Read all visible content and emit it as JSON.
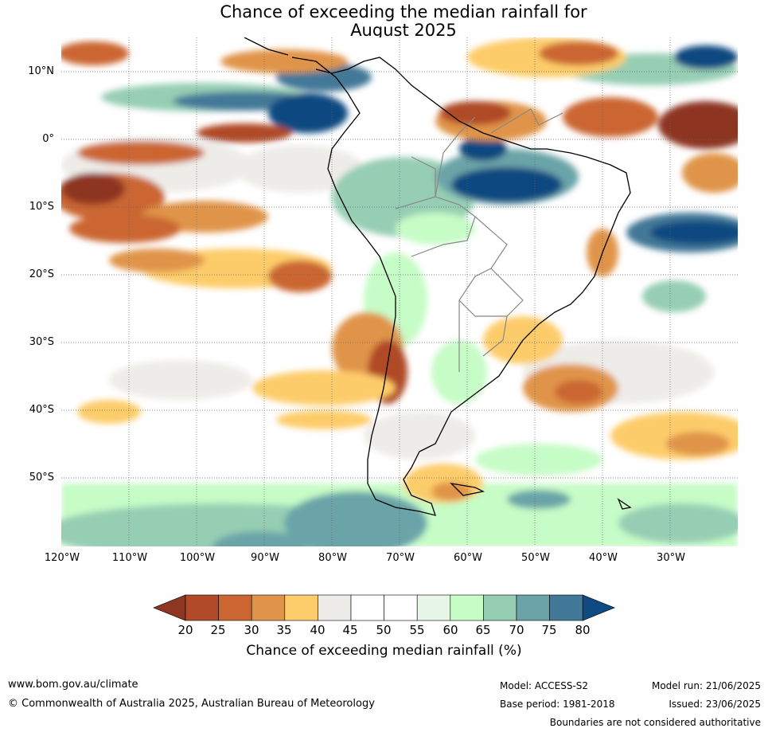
{
  "title": {
    "line1": "Chance of exceeding the median rainfall for",
    "line2": "August 2025"
  },
  "latitudes": [
    "10°N",
    "0°",
    "10°S",
    "20°S",
    "30°S",
    "40°S",
    "50°S"
  ],
  "longitudes": [
    "120°W",
    "110°W",
    "100°W",
    "90°W",
    "80°W",
    "70°W",
    "60°W",
    "50°W",
    "40°W",
    "30°W"
  ],
  "colorbar": {
    "label": "Chance of exceeding median rainfall (%)",
    "ticks": [
      "20",
      "25",
      "30",
      "35",
      "40",
      "45",
      "50",
      "55",
      "60",
      "65",
      "70",
      "75",
      "80"
    ],
    "colors": [
      "#8e3621",
      "#b04a28",
      "#cb6632",
      "#e0944a",
      "#fdcc6b",
      "#eeece8",
      "#ffffff",
      "#ffffff",
      "#e8f6e8",
      "#c6fcc6",
      "#96ceb4",
      "#6aa4a8",
      "#427898",
      "#0f4a80"
    ]
  },
  "footer": {
    "website": "www.bom.gov.au/climate",
    "copyright": "© Commonwealth of Australia 2025, Australian Bureau of Meteorology",
    "model": "Model: ACCESS-S2",
    "base_period": "Base period: 1981-2018",
    "model_run": "Model run: 21/06/2025",
    "issued": "Issued: 23/06/2025",
    "disclaimer": "Boundaries are not considered authoritative"
  }
}
